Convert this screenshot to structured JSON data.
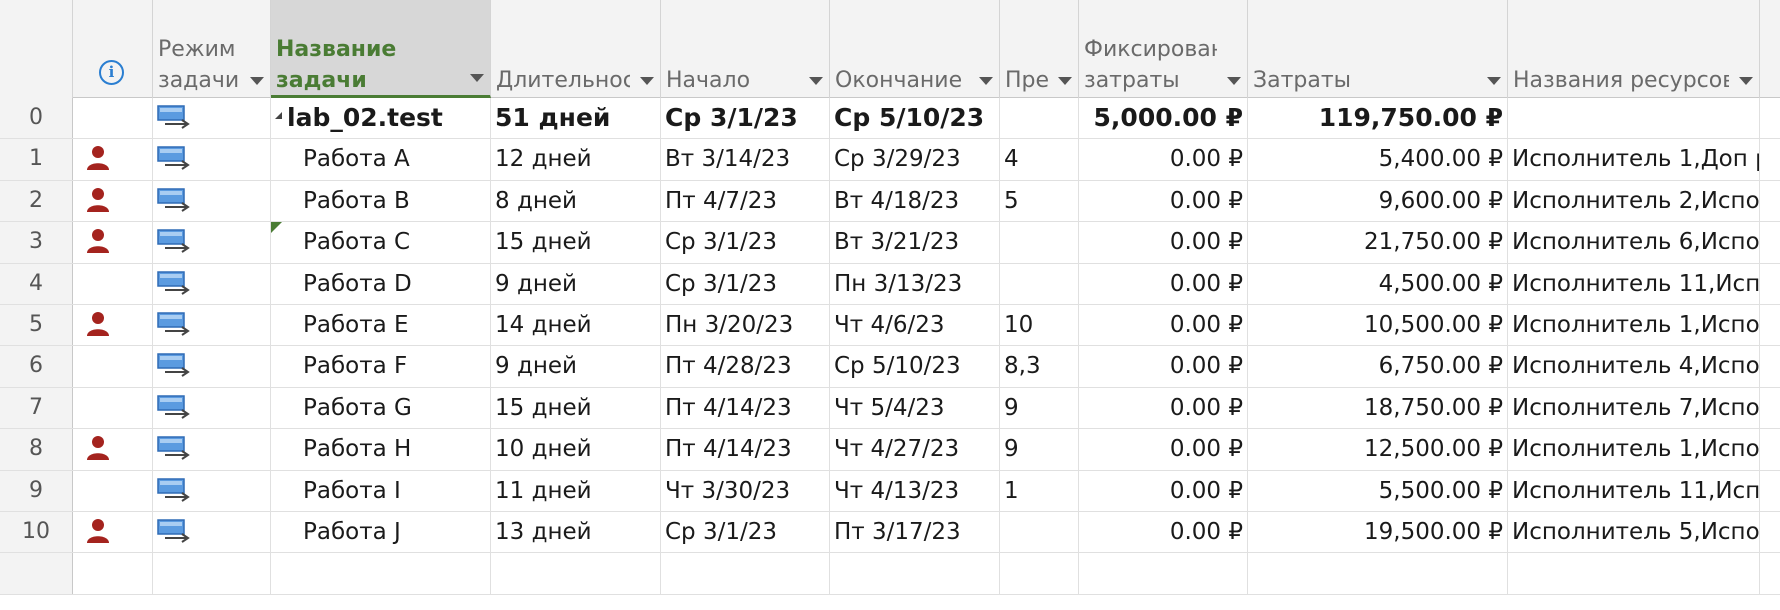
{
  "headers": {
    "info": "i",
    "mode": [
      "Режим",
      "задачи"
    ],
    "name": [
      "Название",
      "задачи"
    ],
    "duration": "Длительнос",
    "start": "Начало",
    "finish": "Окончание",
    "pred": "Пре",
    "fixed_cost": [
      "Фиксирован",
      "затраты"
    ],
    "cost": "Затраты",
    "resources": "Названия ресурсов"
  },
  "icons": {
    "info": "info-circle-icon",
    "mode": "auto-scheduled-task-icon",
    "person": "assigned-resource-person-icon",
    "sort": "chevron-down-icon",
    "summary": "collapse-triangle-icon",
    "note": "green-triangle-note-icon"
  },
  "colors": {
    "selected_header_text": "#4a7c34",
    "selected_header_bg": "#d7d7d7",
    "info_blue": "#2a7ed1",
    "person_red": "#a4231e",
    "mode_icon_blue": "#3f7fd0"
  },
  "rows": [
    {
      "id": "0",
      "indicator": false,
      "note": false,
      "summary": true,
      "name": "lab_02.test",
      "duration": "51 дней",
      "start": "Ср 3/1/23",
      "finish": "Ср 5/10/23",
      "pred": "",
      "fixed_cost": "5,000.00 ₽",
      "cost": "119,750.00 ₽",
      "resources": ""
    },
    {
      "id": "1",
      "indicator": true,
      "note": false,
      "summary": false,
      "name": "Работа A",
      "duration": "12 дней",
      "start": "Вт 3/14/23",
      "finish": "Ср 3/29/23",
      "pred": "4",
      "fixed_cost": "0.00 ₽",
      "cost": "5,400.00 ₽",
      "resources": "Исполнитель 1,Доп р"
    },
    {
      "id": "2",
      "indicator": true,
      "note": false,
      "summary": false,
      "name": "Работа B",
      "duration": "8 дней",
      "start": "Пт 4/7/23",
      "finish": "Вт 4/18/23",
      "pred": "5",
      "fixed_cost": "0.00 ₽",
      "cost": "9,600.00 ₽",
      "resources": "Исполнитель 2,Испол"
    },
    {
      "id": "3",
      "indicator": true,
      "note": true,
      "summary": false,
      "name": "Работа C",
      "duration": "15 дней",
      "start": "Ср 3/1/23",
      "finish": "Вт 3/21/23",
      "pred": "",
      "fixed_cost": "0.00 ₽",
      "cost": "21,750.00 ₽",
      "resources": "Исполнитель 6,Испол"
    },
    {
      "id": "4",
      "indicator": false,
      "note": false,
      "summary": false,
      "name": "Работа D",
      "duration": "9 дней",
      "start": "Ср 3/1/23",
      "finish": "Пн 3/13/23",
      "pred": "",
      "fixed_cost": "0.00 ₽",
      "cost": "4,500.00 ₽",
      "resources": "Исполнитель 11,Испо"
    },
    {
      "id": "5",
      "indicator": true,
      "note": false,
      "summary": false,
      "name": "Работа E",
      "duration": "14 дней",
      "start": "Пн 3/20/23",
      "finish": "Чт 4/6/23",
      "pred": "10",
      "fixed_cost": "0.00 ₽",
      "cost": "10,500.00 ₽",
      "resources": "Исполнитель 1,Испол"
    },
    {
      "id": "6",
      "indicator": false,
      "note": false,
      "summary": false,
      "name": "Работа F",
      "duration": "9 дней",
      "start": "Пт 4/28/23",
      "finish": "Ср 5/10/23",
      "pred": "8,3",
      "fixed_cost": "0.00 ₽",
      "cost": "6,750.00 ₽",
      "resources": "Исполнитель 4,Испол"
    },
    {
      "id": "7",
      "indicator": false,
      "note": false,
      "summary": false,
      "name": "Работа G",
      "duration": "15 дней",
      "start": "Пт 4/14/23",
      "finish": "Чт 5/4/23",
      "pred": "9",
      "fixed_cost": "0.00 ₽",
      "cost": "18,750.00 ₽",
      "resources": "Исполнитель 7,Испол"
    },
    {
      "id": "8",
      "indicator": true,
      "note": false,
      "summary": false,
      "name": "Работа H",
      "duration": "10 дней",
      "start": "Пт 4/14/23",
      "finish": "Чт 4/27/23",
      "pred": "9",
      "fixed_cost": "0.00 ₽",
      "cost": "12,500.00 ₽",
      "resources": "Исполнитель 1,Испол"
    },
    {
      "id": "9",
      "indicator": false,
      "note": false,
      "summary": false,
      "name": "Работа I",
      "duration": "11 дней",
      "start": "Чт 3/30/23",
      "finish": "Чт 4/13/23",
      "pred": "1",
      "fixed_cost": "0.00 ₽",
      "cost": "5,500.00 ₽",
      "resources": "Исполнитель 11,Испо"
    },
    {
      "id": "10",
      "indicator": true,
      "note": false,
      "summary": false,
      "name": "Работа J",
      "duration": "13 дней",
      "start": "Ср 3/1/23",
      "finish": "Пт 3/17/23",
      "pred": "",
      "fixed_cost": "0.00 ₽",
      "cost": "19,500.00 ₽",
      "resources": "Исполнитель 5,Испол"
    },
    {
      "id": "",
      "indicator": false,
      "note": false,
      "summary": false,
      "name": "",
      "duration": "",
      "start": "",
      "finish": "",
      "pred": "",
      "fixed_cost": "",
      "cost": "",
      "resources": ""
    }
  ]
}
